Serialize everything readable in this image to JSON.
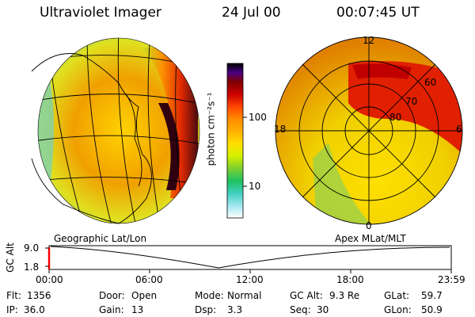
{
  "header": {
    "title": "Ultraviolet Imager",
    "date": "24 Jul 00",
    "time": "00:07:45 UT"
  },
  "colorbar": {
    "unit_label": "photon cm⁻²s⁻¹",
    "ticks": [
      "100",
      "10"
    ],
    "colors": [
      "#000000",
      "#4b0082",
      "#800000",
      "#cc0000",
      "#ff4500",
      "#ff8c00",
      "#ffb000",
      "#ffe000",
      "#d4f000",
      "#7cd030",
      "#20c060",
      "#40d0c0",
      "#a0e8f0",
      "#ffffff"
    ]
  },
  "geo_panel": {
    "label": "Geographic Lat/Lon"
  },
  "polar_panel": {
    "label": "Apex MLat/MLT",
    "mlt_labels": {
      "top": "12",
      "left": "18",
      "right": "6",
      "bottom": "0"
    },
    "lat_labels": [
      "60",
      "70",
      "80"
    ]
  },
  "altitude_plot": {
    "ylabel": "GC Alt",
    "y_ticks": [
      "9.0",
      "1.8"
    ],
    "x_ticks": [
      "00:00",
      "06:00",
      "12:00",
      "18:00",
      "23:59"
    ]
  },
  "status": {
    "row1": [
      {
        "label": "Flt:",
        "value": "1356"
      },
      {
        "label": "Door:",
        "value": "Open"
      },
      {
        "label": "Mode:",
        "value": "Normal"
      },
      {
        "label": "GC Alt:",
        "value": "9.3 Re"
      },
      {
        "label": "GLat:",
        "value": "59.7"
      }
    ],
    "row2": [
      {
        "label": "IP:",
        "value": "36.0"
      },
      {
        "label": "Gain:",
        "value": "13"
      },
      {
        "label": "Dsp:",
        "value": "3.3"
      },
      {
        "label": "Seq:",
        "value": "30"
      },
      {
        "label": "GLon:",
        "value": "50.9"
      }
    ]
  }
}
